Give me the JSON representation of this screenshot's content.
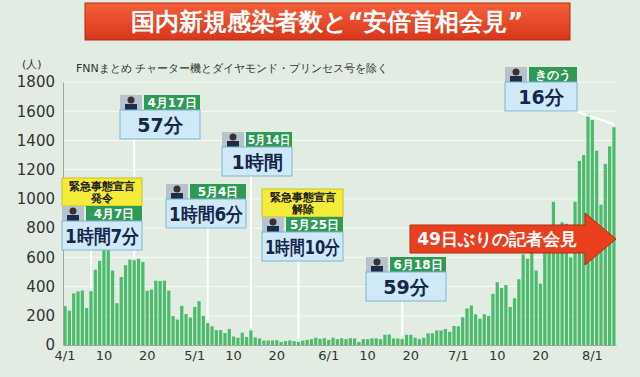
{
  "chart_data": {
    "type": "bar",
    "title": "国内新規感染者数と“安倍首相会見”",
    "subtitle": "FNNまとめ チャーター機とダイヤモンド・プリンセス号を除く",
    "y_label": "(人)",
    "categories": [
      "4/1",
      null,
      null,
      null,
      null,
      null,
      null,
      null,
      null,
      "10",
      null,
      null,
      null,
      null,
      null,
      null,
      null,
      null,
      null,
      "20",
      null,
      null,
      null,
      null,
      null,
      null,
      null,
      null,
      null,
      null,
      "5/1",
      null,
      null,
      null,
      null,
      null,
      null,
      null,
      null,
      "10",
      null,
      null,
      null,
      null,
      null,
      null,
      null,
      null,
      null,
      "20",
      null,
      null,
      null,
      null,
      null,
      null,
      null,
      null,
      null,
      null,
      null,
      "6/1",
      null,
      null,
      null,
      null,
      null,
      null,
      null,
      null,
      "10",
      null,
      null,
      null,
      null,
      null,
      null,
      null,
      null,
      null,
      "20",
      null,
      null,
      null,
      null,
      null,
      null,
      null,
      null,
      null,
      null,
      "7/1",
      null,
      null,
      null,
      null,
      null,
      null,
      null,
      null,
      "10",
      null,
      null,
      null,
      null,
      null,
      null,
      null,
      null,
      null,
      "20",
      null,
      null,
      null,
      null,
      null,
      null,
      null,
      null,
      null,
      null,
      null,
      "8/1",
      null,
      null,
      null,
      null,
      null
    ],
    "values": [
      266,
      235,
      353,
      367,
      373,
      253,
      368,
      515,
      576,
      708,
      715,
      509,
      286,
      465,
      546,
      584,
      580,
      590,
      568,
      371,
      380,
      440,
      438,
      440,
      372,
      199,
      174,
      268,
      212,
      188,
      261,
      300,
      200,
      150,
      128,
      102,
      102,
      82,
      110,
      58,
      50,
      84,
      55,
      100,
      52,
      45,
      30,
      30,
      31,
      33,
      21,
      27,
      31,
      26,
      21,
      30,
      35,
      40,
      50,
      42,
      47,
      35,
      50,
      40,
      46,
      40,
      46,
      45,
      21,
      40,
      40,
      45,
      46,
      40,
      70,
      72,
      45,
      45,
      40,
      70,
      70,
      50,
      40,
      50,
      80,
      80,
      100,
      100,
      110,
      90,
      130,
      128,
      190,
      250,
      270,
      210,
      180,
      210,
      200,
      350,
      430,
      390,
      410,
      260,
      320,
      450,
      620,
      590,
      660,
      510,
      420,
      630,
      800,
      980,
      780,
      840,
      830,
      600,
      980,
      1260,
      1300,
      1580,
      1540,
      1330,
      960,
      1240,
      1360,
      1490
    ],
    "color": "#4cbb6c",
    "ylim": [
      0,
      1800
    ],
    "yticks": [
      0,
      200,
      400,
      600,
      800,
      1000,
      1200,
      1400,
      1600,
      1800
    ],
    "grid": true,
    "annotations": [
      {
        "event": [
          "緊急事態宣言",
          "発令"
        ],
        "date": "4月7日",
        "duration": "1時間7分"
      },
      {
        "date": "4月17日",
        "duration": "57分"
      },
      {
        "date": "5月4日",
        "duration": "1時間6分"
      },
      {
        "date": "5月14日",
        "duration": "1時間"
      },
      {
        "event": [
          "緊急事態宣言",
          "解除"
        ],
        "date": "5月25日",
        "duration": "1時間10分"
      },
      {
        "date": "6月18日",
        "duration": "59分"
      },
      {
        "date": "きのう",
        "duration": "16分"
      }
    ],
    "highlight": "49日ぶりの記者会見"
  }
}
